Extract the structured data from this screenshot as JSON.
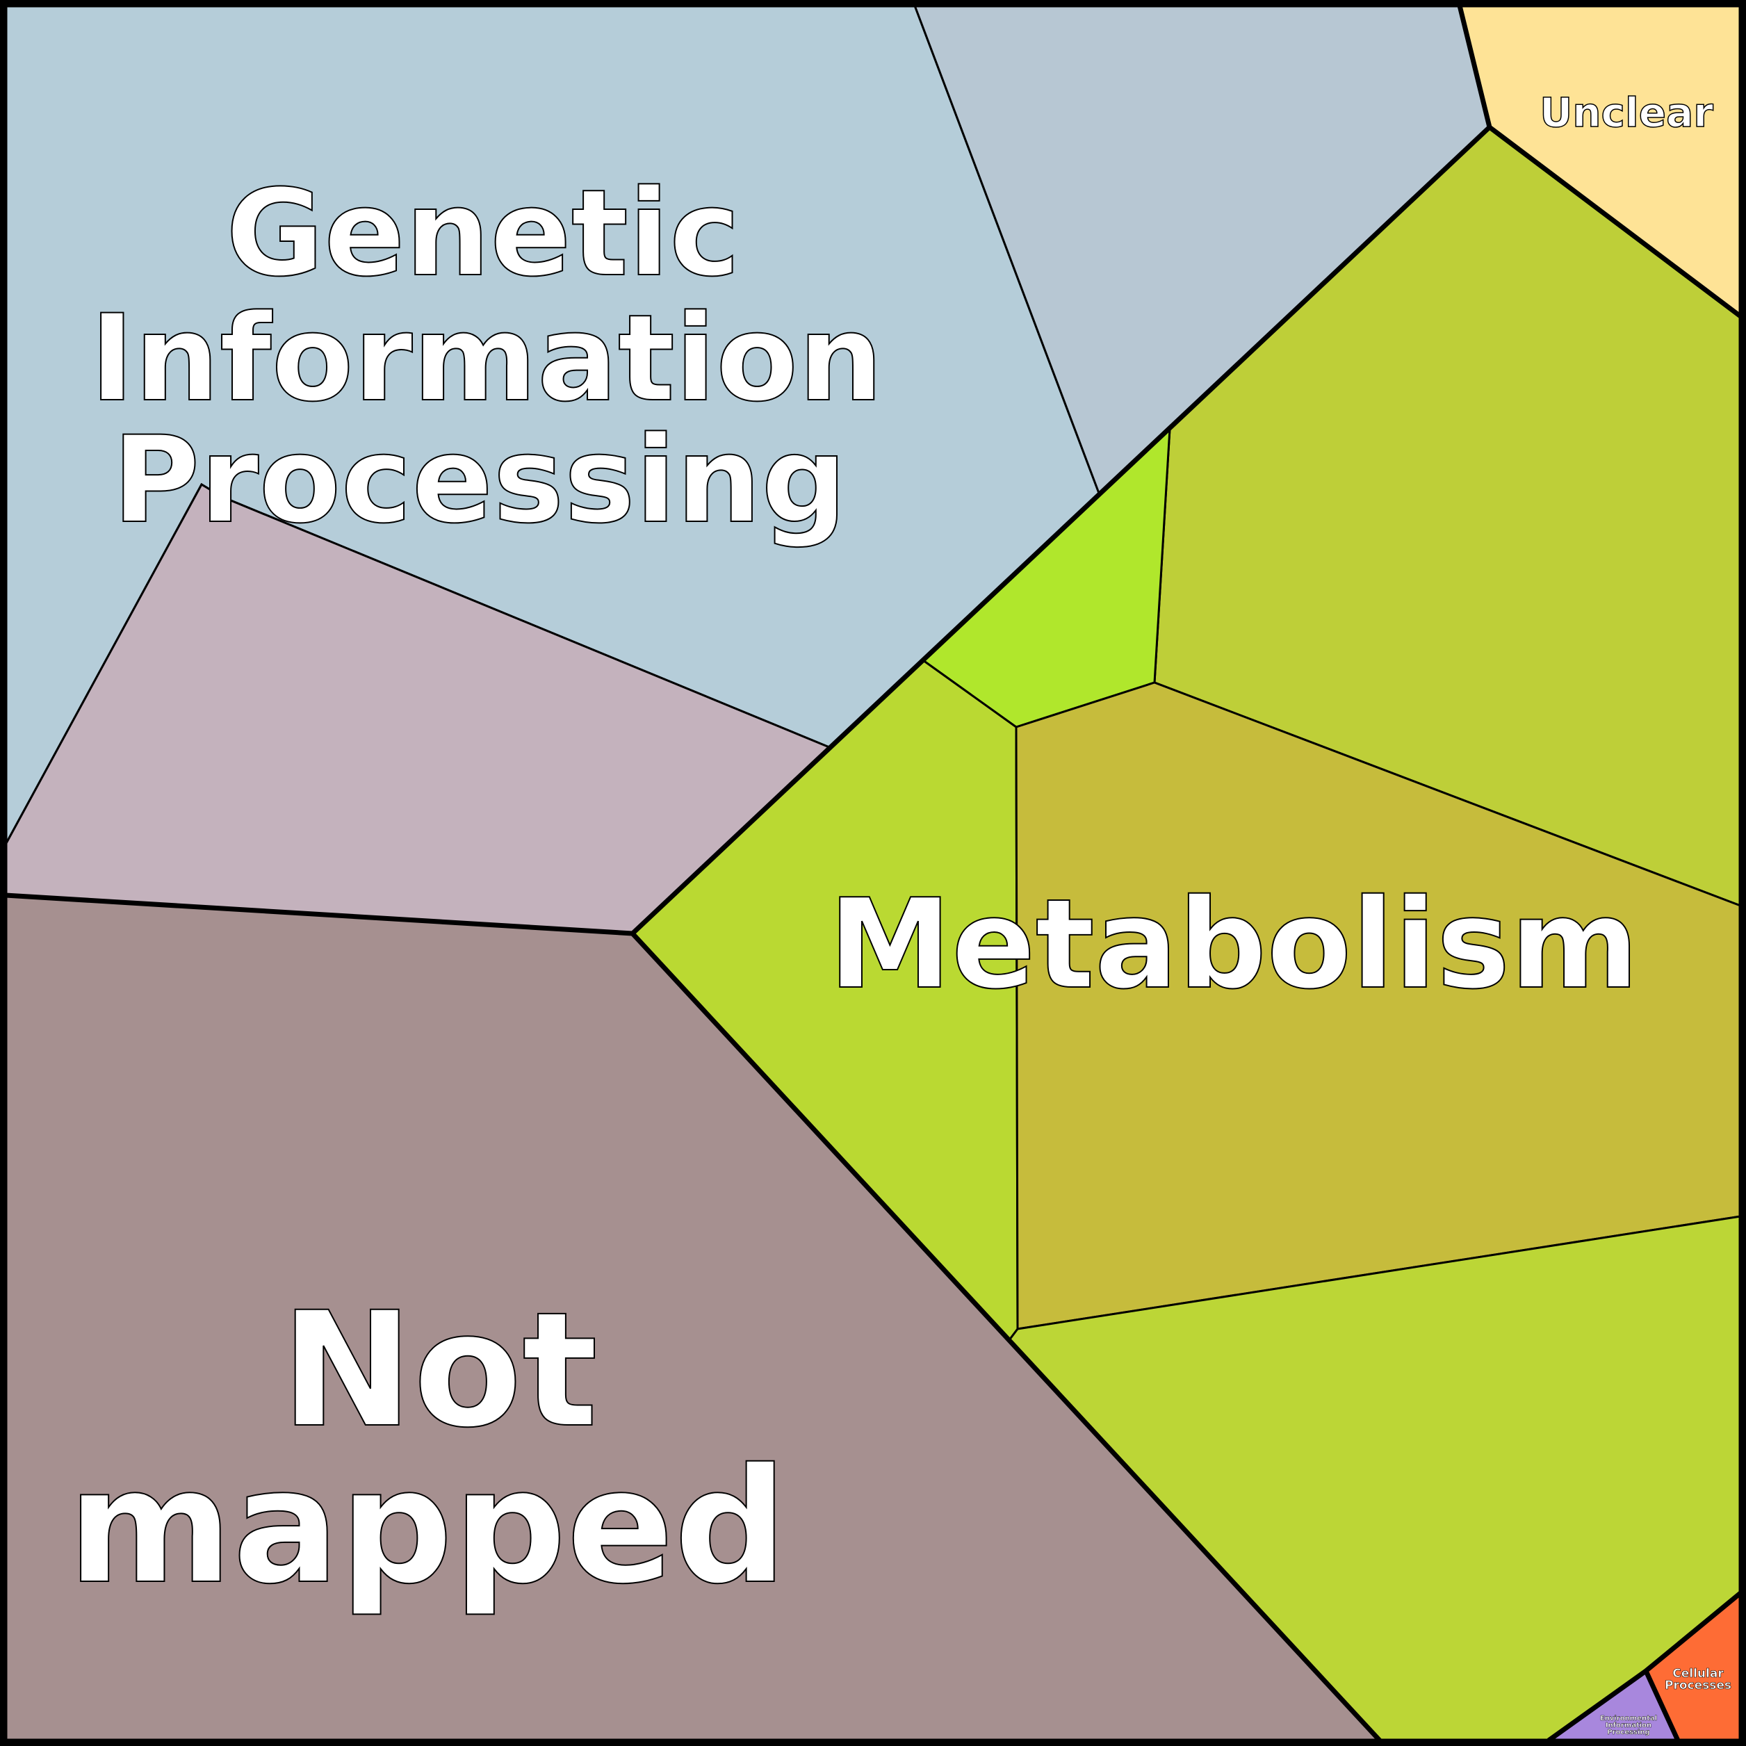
{
  "labels": {
    "genetic": [
      "Genetic",
      "Information",
      "Processing"
    ],
    "metabolism": "Metabolism",
    "not_mapped": [
      "Not",
      "mapped"
    ],
    "unclear": "Unclear",
    "cellular": [
      "Cellular",
      "Processes"
    ],
    "environmental": [
      "Environmental",
      "Information",
      "Processing"
    ]
  },
  "colors": {
    "genetic": "#b5cdd9",
    "genetic_sub2": "#c4b2bd",
    "genetic_sub3": "#b7c7d3",
    "unclear": "#fee396",
    "metabolism_a": "#becf38",
    "metabolism_b": "#b0e72c",
    "metabolism_c": "#bad932",
    "metabolism_d": "#c6bc3c",
    "metabolism_e": "#bcd636",
    "cellular": "#fe6c35",
    "environmental": "#a887dd",
    "not_mapped": "#a69090"
  }
}
